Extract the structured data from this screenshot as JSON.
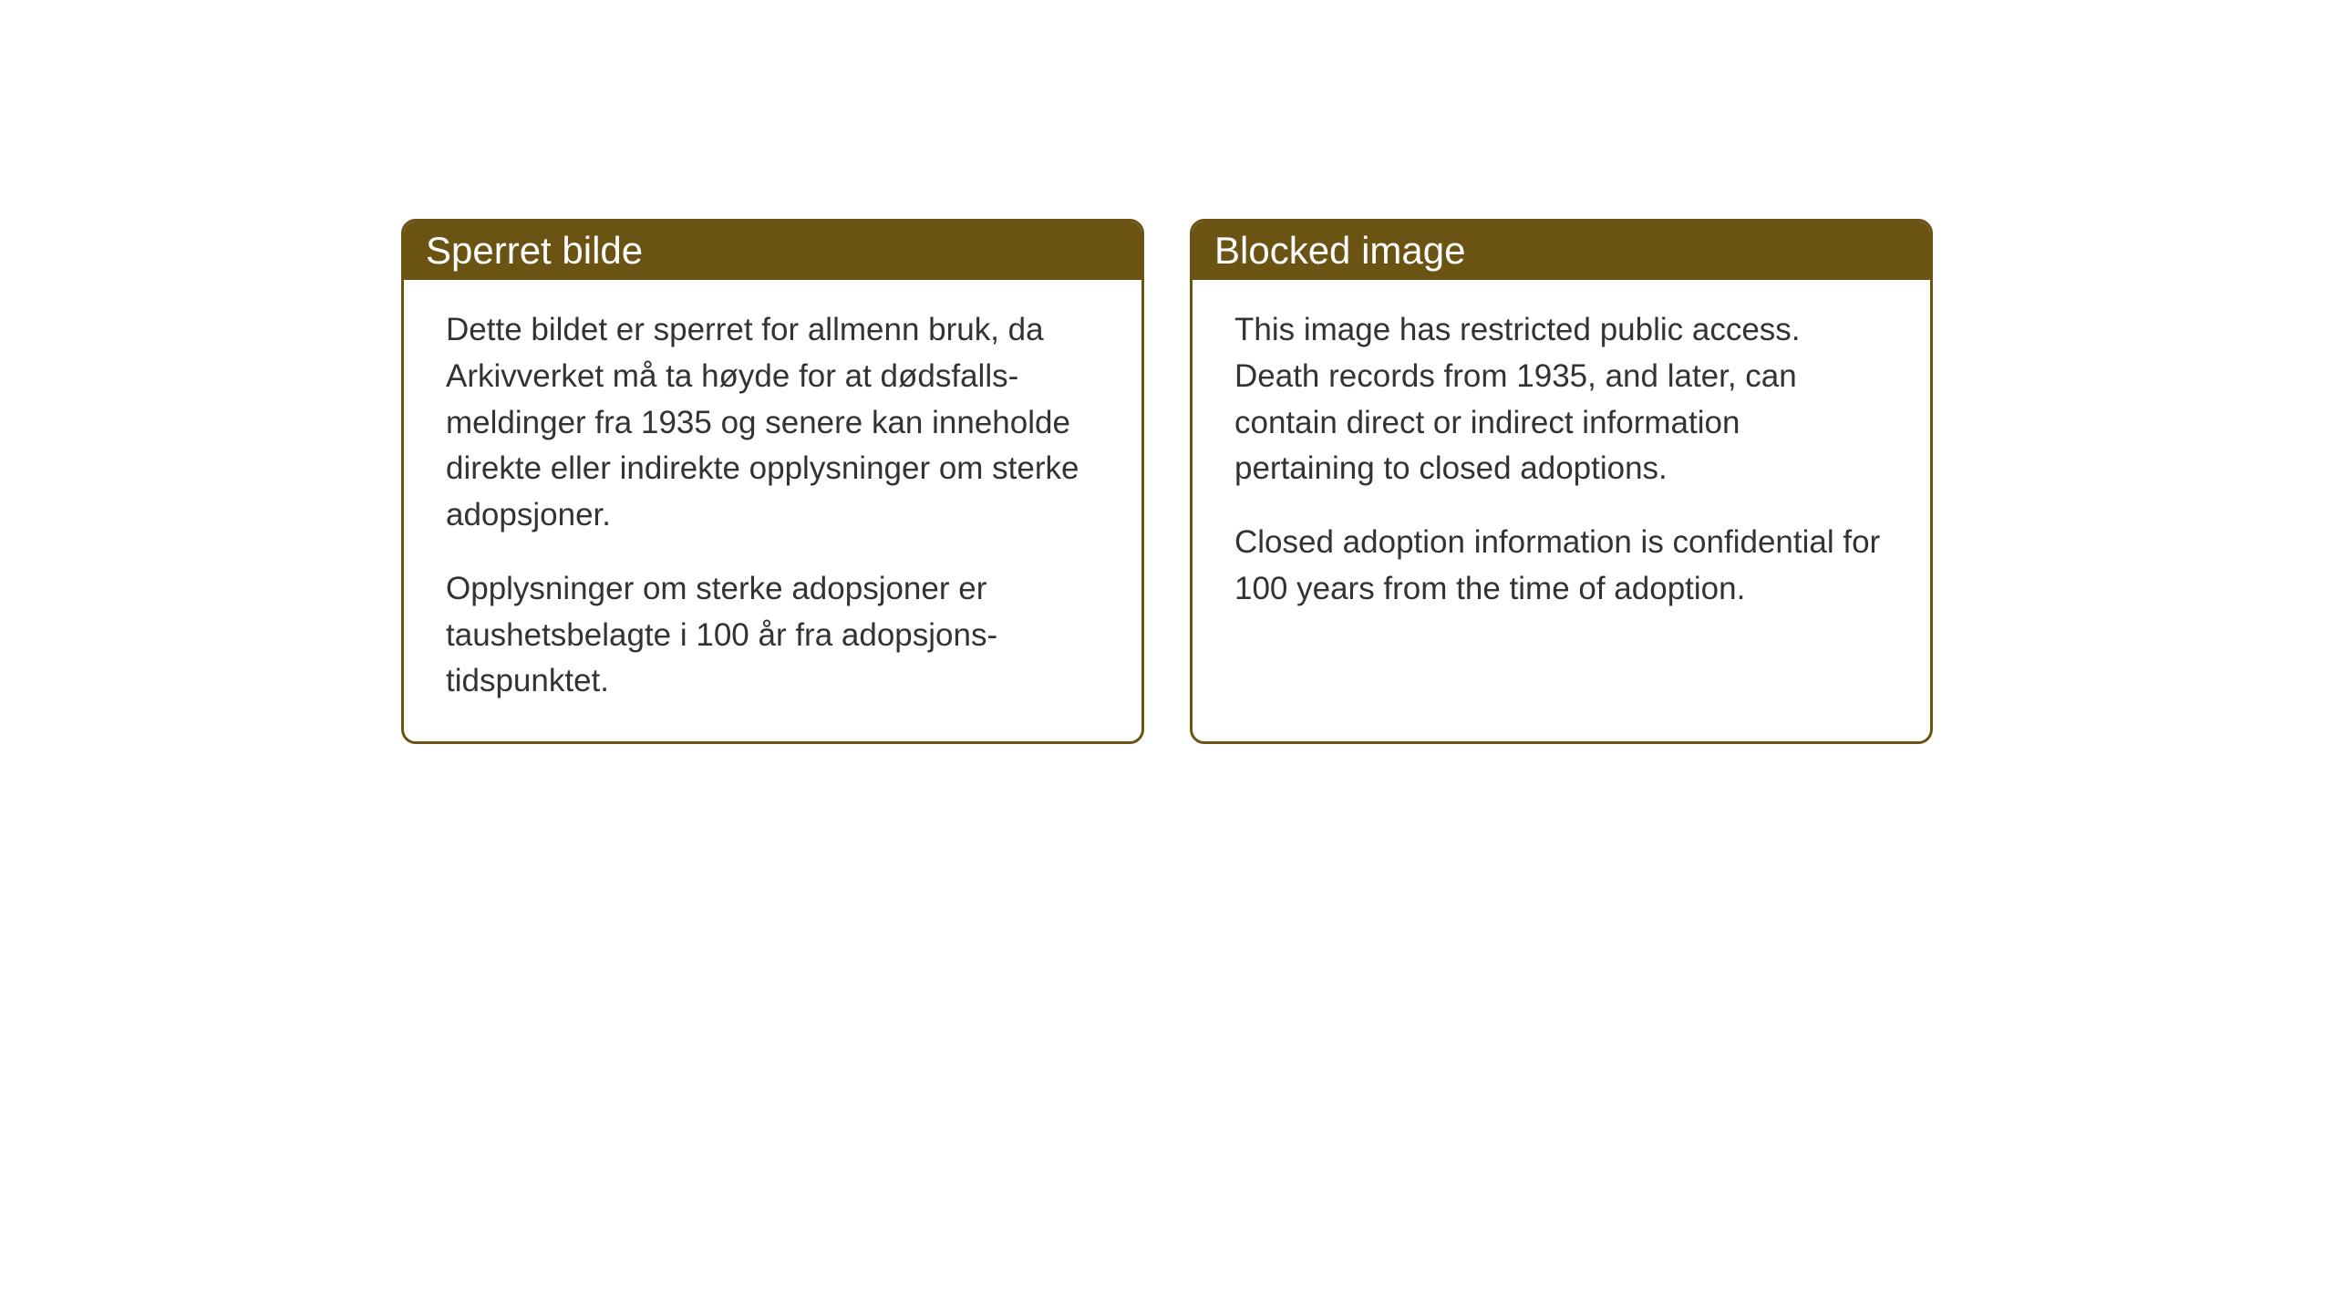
{
  "layout": {
    "background_color": "#ffffff",
    "card_border_color": "#6b5313",
    "card_header_bg": "#6b5313",
    "card_header_text_color": "#ffffff",
    "card_body_text_color": "#333333",
    "card_border_radius": 16,
    "card_border_width": 3,
    "header_fontsize": 42,
    "body_fontsize": 35,
    "gap": 50
  },
  "cards": {
    "norwegian": {
      "title": "Sperret bilde",
      "paragraph1": "Dette bildet er sperret for allmenn bruk, da Arkivverket må ta høyde for at dødsfalls-meldinger fra 1935 og senere kan inneholde direkte eller indirekte opplysninger om sterke adopsjoner.",
      "paragraph2": "Opplysninger om sterke adopsjoner er taushetsbelagte i 100 år fra adopsjons-tidspunktet."
    },
    "english": {
      "title": "Blocked image",
      "paragraph1": "This image has restricted public access. Death records from 1935, and later, can contain direct or indirect information pertaining to closed adoptions.",
      "paragraph2": "Closed adoption information is confidential for 100 years from the time of adoption."
    }
  }
}
